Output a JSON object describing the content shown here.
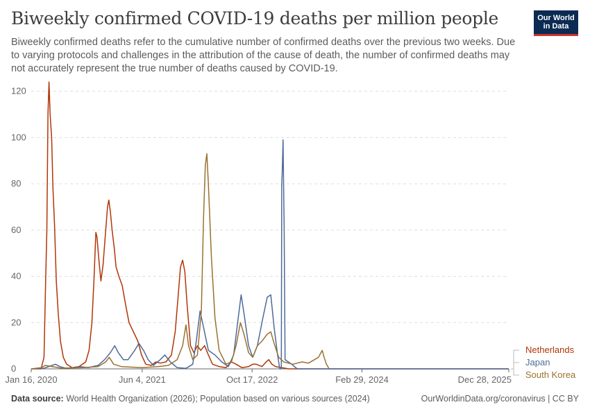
{
  "header": {
    "title": "Biweekly confirmed COVID-19 deaths per million people",
    "subtitle": "Biweekly confirmed deaths refer to the cumulative number of confirmed deaths over the previous two weeks. Due to varying protocols and challenges in the attribution of the cause of death, the number of confirmed deaths may not accurately represent the true number of deaths caused by COVID-19.",
    "logo_line1": "Our World",
    "logo_line2": "in Data"
  },
  "footer": {
    "source_label": "Data source:",
    "source_text": "World Health Organization (2026); Population based on various sources (2024)",
    "link_text": "OurWorldinData.org/coronavirus | CC BY"
  },
  "colors": {
    "Netherlands": "#b13507",
    "Japan": "#4c6a9c",
    "South Korea": "#9a7030",
    "grid": "#dddddd",
    "axis": "#666666"
  },
  "chart_data": {
    "type": "line",
    "title": "Biweekly confirmed COVID-19 deaths per million people",
    "x_axis": {
      "type": "date",
      "range": [
        "2020-01-16",
        "2025-12-28"
      ],
      "ticks": [
        "2020-01-16",
        "2021-06-04",
        "2022-10-17",
        "2024-02-29",
        "2025-12-28"
      ],
      "tick_labels": [
        "Jan 16, 2020",
        "Jun 4, 2021",
        "Oct 17, 2022",
        "Feb 29, 2024",
        "Dec 28, 2025"
      ]
    },
    "y_axis": {
      "range": [
        0,
        125
      ],
      "ticks": [
        0,
        20,
        40,
        60,
        80,
        100,
        120
      ],
      "grid": true
    },
    "legend": {
      "placement": "right",
      "entries": [
        "Netherlands",
        "Japan",
        "South Korea"
      ]
    },
    "series": [
      {
        "name": "Netherlands",
        "points": [
          [
            "2020-01-16",
            0
          ],
          [
            "2020-03-01",
            0
          ],
          [
            "2020-03-14",
            5
          ],
          [
            "2020-03-22",
            40
          ],
          [
            "2020-03-27",
            60
          ],
          [
            "2020-04-01",
            110
          ],
          [
            "2020-04-06",
            124
          ],
          [
            "2020-04-11",
            110
          ],
          [
            "2020-04-18",
            100
          ],
          [
            "2020-04-24",
            78
          ],
          [
            "2020-05-01",
            62
          ],
          [
            "2020-05-09",
            38
          ],
          [
            "2020-05-18",
            24
          ],
          [
            "2020-05-28",
            12
          ],
          [
            "2020-06-10",
            5
          ],
          [
            "2020-06-25",
            2
          ],
          [
            "2020-07-20",
            0.5
          ],
          [
            "2020-08-20",
            1
          ],
          [
            "2020-09-20",
            3
          ],
          [
            "2020-10-05",
            8
          ],
          [
            "2020-10-18",
            20
          ],
          [
            "2020-10-28",
            40
          ],
          [
            "2020-11-05",
            59
          ],
          [
            "2020-11-10",
            57
          ],
          [
            "2020-11-20",
            46
          ],
          [
            "2020-11-28",
            38
          ],
          [
            "2020-12-08",
            45
          ],
          [
            "2020-12-20",
            60
          ],
          [
            "2020-12-28",
            70
          ],
          [
            "2021-01-03",
            73
          ],
          [
            "2021-01-10",
            68
          ],
          [
            "2021-01-18",
            60
          ],
          [
            "2021-01-28",
            52
          ],
          [
            "2021-02-05",
            44
          ],
          [
            "2021-02-18",
            40
          ],
          [
            "2021-03-05",
            36
          ],
          [
            "2021-03-20",
            28
          ],
          [
            "2021-04-05",
            20
          ],
          [
            "2021-04-25",
            16
          ],
          [
            "2021-05-15",
            12
          ],
          [
            "2021-06-01",
            6
          ],
          [
            "2021-06-20",
            2
          ],
          [
            "2021-07-15",
            1.5
          ],
          [
            "2021-08-05",
            3
          ],
          [
            "2021-08-25",
            2.5
          ],
          [
            "2021-09-20",
            3
          ],
          [
            "2021-10-15",
            6
          ],
          [
            "2021-11-01",
            16
          ],
          [
            "2021-11-15",
            32
          ],
          [
            "2021-11-25",
            44
          ],
          [
            "2021-12-05",
            47
          ],
          [
            "2021-12-15",
            42
          ],
          [
            "2021-12-25",
            28
          ],
          [
            "2022-01-10",
            10
          ],
          [
            "2022-01-25",
            7
          ],
          [
            "2022-02-10",
            10
          ],
          [
            "2022-02-25",
            8
          ],
          [
            "2022-03-15",
            10
          ],
          [
            "2022-04-01",
            6
          ],
          [
            "2022-04-20",
            2
          ],
          [
            "2022-05-20",
            1
          ],
          [
            "2022-06-20",
            0.5
          ],
          [
            "2022-07-15",
            3
          ],
          [
            "2022-08-05",
            2
          ],
          [
            "2022-09-01",
            0.5
          ],
          [
            "2022-10-01",
            1
          ],
          [
            "2022-10-20",
            2
          ],
          [
            "2022-11-05",
            2
          ],
          [
            "2022-12-01",
            1
          ],
          [
            "2022-12-20",
            3
          ],
          [
            "2023-01-01",
            4
          ],
          [
            "2023-01-15",
            2
          ],
          [
            "2023-02-01",
            1
          ],
          [
            "2023-03-01",
            0.5
          ],
          [
            "2023-04-01",
            0
          ],
          [
            "2025-12-28",
            0
          ]
        ]
      },
      {
        "name": "Japan",
        "points": [
          [
            "2020-01-16",
            0
          ],
          [
            "2020-03-15",
            0.3
          ],
          [
            "2020-04-20",
            1.5
          ],
          [
            "2020-05-05",
            2
          ],
          [
            "2020-05-25",
            1
          ],
          [
            "2020-06-20",
            0.3
          ],
          [
            "2020-08-01",
            0.5
          ],
          [
            "2020-08-25",
            1
          ],
          [
            "2020-10-01",
            0.5
          ],
          [
            "2020-11-15",
            1.5
          ],
          [
            "2020-12-15",
            4
          ],
          [
            "2021-01-10",
            7
          ],
          [
            "2021-01-30",
            10
          ],
          [
            "2021-02-15",
            7
          ],
          [
            "2021-03-10",
            4
          ],
          [
            "2021-04-01",
            4
          ],
          [
            "2021-05-01",
            8
          ],
          [
            "2021-05-20",
            11
          ],
          [
            "2021-06-10",
            8
          ],
          [
            "2021-07-01",
            4
          ],
          [
            "2021-07-25",
            1.5
          ],
          [
            "2021-08-25",
            4
          ],
          [
            "2021-09-15",
            6
          ],
          [
            "2021-10-10",
            3
          ],
          [
            "2021-11-10",
            0.5
          ],
          [
            "2021-12-20",
            0.2
          ],
          [
            "2022-01-20",
            2
          ],
          [
            "2022-02-05",
            12
          ],
          [
            "2022-02-22",
            25
          ],
          [
            "2022-03-10",
            18
          ],
          [
            "2022-04-01",
            8
          ],
          [
            "2022-05-01",
            6
          ],
          [
            "2022-06-01",
            3
          ],
          [
            "2022-07-01",
            1
          ],
          [
            "2022-07-25",
            6
          ],
          [
            "2022-08-15",
            22
          ],
          [
            "2022-08-28",
            32
          ],
          [
            "2022-09-10",
            24
          ],
          [
            "2022-10-01",
            10
          ],
          [
            "2022-10-20",
            5
          ],
          [
            "2022-11-10",
            10
          ],
          [
            "2022-12-05",
            22
          ],
          [
            "2022-12-25",
            31
          ],
          [
            "2023-01-10",
            32
          ],
          [
            "2023-01-25",
            18
          ],
          [
            "2023-02-10",
            6
          ],
          [
            "2023-02-20",
            0
          ],
          [
            "2023-02-27",
            0
          ],
          [
            "2023-03-01",
            80
          ],
          [
            "2023-03-03",
            85
          ],
          [
            "2023-03-07",
            99
          ],
          [
            "2023-03-12",
            60
          ],
          [
            "2023-03-16",
            4
          ],
          [
            "2023-04-15",
            2
          ],
          [
            "2023-05-10",
            0
          ],
          [
            "2025-12-28",
            0
          ]
        ]
      },
      {
        "name": "South Korea",
        "points": [
          [
            "2020-01-16",
            0
          ],
          [
            "2020-03-01",
            0.5
          ],
          [
            "2020-03-20",
            1.5
          ],
          [
            "2020-04-20",
            1
          ],
          [
            "2020-06-01",
            0.3
          ],
          [
            "2020-09-10",
            0.5
          ],
          [
            "2020-11-15",
            1
          ],
          [
            "2020-12-20",
            3
          ],
          [
            "2021-01-05",
            5
          ],
          [
            "2021-01-25",
            2
          ],
          [
            "2021-03-01",
            1
          ],
          [
            "2021-06-01",
            0.5
          ],
          [
            "2021-08-15",
            1
          ],
          [
            "2021-10-01",
            1.5
          ],
          [
            "2021-11-10",
            4
          ],
          [
            "2021-12-05",
            10
          ],
          [
            "2021-12-20",
            19
          ],
          [
            "2022-01-01",
            10
          ],
          [
            "2022-01-20",
            4
          ],
          [
            "2022-02-10",
            6
          ],
          [
            "2022-02-28",
            25
          ],
          [
            "2022-03-10",
            65
          ],
          [
            "2022-03-18",
            88
          ],
          [
            "2022-03-25",
            93
          ],
          [
            "2022-04-01",
            80
          ],
          [
            "2022-04-15",
            48
          ],
          [
            "2022-05-01",
            22
          ],
          [
            "2022-05-20",
            8
          ],
          [
            "2022-06-20",
            2
          ],
          [
            "2022-07-15",
            3
          ],
          [
            "2022-08-05",
            10
          ],
          [
            "2022-08-25",
            20
          ],
          [
            "2022-09-10",
            15
          ],
          [
            "2022-10-01",
            7
          ],
          [
            "2022-10-20",
            5
          ],
          [
            "2022-11-10",
            10
          ],
          [
            "2022-12-01",
            12
          ],
          [
            "2022-12-25",
            15
          ],
          [
            "2023-01-10",
            16
          ],
          [
            "2023-01-25",
            11
          ],
          [
            "2023-02-15",
            5
          ],
          [
            "2023-03-10",
            3
          ],
          [
            "2023-04-20",
            2
          ],
          [
            "2023-06-01",
            3
          ],
          [
            "2023-07-01",
            2.5
          ],
          [
            "2023-08-15",
            5
          ],
          [
            "2023-09-01",
            8
          ],
          [
            "2023-09-10",
            5
          ],
          [
            "2023-09-20",
            2
          ],
          [
            "2023-10-01",
            0.3
          ]
        ]
      }
    ]
  }
}
